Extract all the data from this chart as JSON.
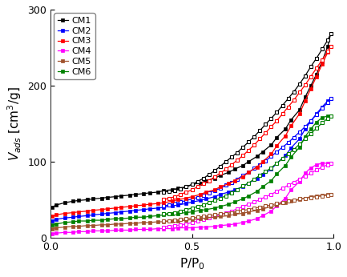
{
  "title": "",
  "xlabel": "P/P$_0$",
  "ylabel": "$V_{ads}$ [cm$^3$/g]",
  "xlim": [
    0.0,
    1.0
  ],
  "ylim": [
    0,
    300
  ],
  "yticks": [
    0,
    100,
    200,
    300
  ],
  "xticks": [
    0.0,
    0.5,
    1.0
  ],
  "series": [
    {
      "name": "CM1",
      "color": "#000000",
      "adsorption_x": [
        0.005,
        0.02,
        0.05,
        0.08,
        0.1,
        0.13,
        0.15,
        0.18,
        0.2,
        0.23,
        0.25,
        0.28,
        0.3,
        0.33,
        0.35,
        0.38,
        0.4,
        0.43,
        0.45,
        0.48,
        0.5,
        0.53,
        0.55,
        0.58,
        0.6,
        0.63,
        0.65,
        0.68,
        0.7,
        0.73,
        0.75,
        0.78,
        0.8,
        0.83,
        0.85,
        0.88,
        0.9,
        0.92,
        0.94,
        0.96,
        0.98,
        0.99
      ],
      "adsorption_y": [
        40,
        43,
        46,
        48,
        49,
        50,
        51,
        52,
        53,
        54,
        55,
        56,
        57,
        58,
        59,
        60,
        62,
        63,
        65,
        67,
        70,
        72,
        75,
        78,
        82,
        86,
        90,
        95,
        100,
        107,
        113,
        122,
        132,
        143,
        155,
        168,
        185,
        200,
        215,
        232,
        252,
        268
      ],
      "desorption_x": [
        0.99,
        0.98,
        0.96,
        0.94,
        0.92,
        0.9,
        0.88,
        0.86,
        0.84,
        0.82,
        0.8,
        0.78,
        0.76,
        0.74,
        0.72,
        0.7,
        0.68,
        0.66,
        0.64,
        0.62,
        0.6,
        0.58,
        0.56,
        0.54,
        0.52,
        0.5,
        0.48,
        0.46,
        0.44,
        0.42,
        0.4
      ],
      "desorption_y": [
        268,
        260,
        248,
        236,
        225,
        213,
        202,
        192,
        183,
        174,
        165,
        157,
        149,
        141,
        133,
        126,
        119,
        112,
        106,
        100,
        94,
        88,
        83,
        78,
        74,
        70,
        67,
        64,
        62,
        61,
        60
      ]
    },
    {
      "name": "CM2",
      "color": "#0000FF",
      "adsorption_x": [
        0.005,
        0.02,
        0.05,
        0.08,
        0.1,
        0.13,
        0.15,
        0.18,
        0.2,
        0.23,
        0.25,
        0.28,
        0.3,
        0.33,
        0.35,
        0.38,
        0.4,
        0.43,
        0.45,
        0.48,
        0.5,
        0.53,
        0.55,
        0.58,
        0.6,
        0.63,
        0.65,
        0.68,
        0.7,
        0.73,
        0.75,
        0.78,
        0.8,
        0.83,
        0.85,
        0.88,
        0.9,
        0.92,
        0.94,
        0.96,
        0.98,
        0.99
      ],
      "adsorption_y": [
        22,
        24,
        26,
        27,
        28,
        29,
        30,
        31,
        32,
        33,
        34,
        35,
        36,
        37,
        38,
        39,
        40,
        42,
        43,
        45,
        47,
        49,
        51,
        54,
        57,
        60,
        63,
        67,
        72,
        78,
        83,
        90,
        98,
        108,
        118,
        130,
        143,
        153,
        163,
        172,
        180,
        183
      ],
      "desorption_x": [
        0.99,
        0.98,
        0.96,
        0.94,
        0.92,
        0.9,
        0.88,
        0.86,
        0.84,
        0.82,
        0.8,
        0.78,
        0.76,
        0.74,
        0.72,
        0.7,
        0.68,
        0.66,
        0.64,
        0.62,
        0.6,
        0.58,
        0.56,
        0.54,
        0.52,
        0.5,
        0.48,
        0.46,
        0.44,
        0.42,
        0.4
      ],
      "desorption_y": [
        183,
        178,
        170,
        162,
        154,
        146,
        139,
        132,
        125,
        119,
        113,
        107,
        101,
        96,
        91,
        86,
        82,
        77,
        73,
        69,
        65,
        62,
        59,
        56,
        53,
        51,
        49,
        47,
        45,
        43,
        42
      ]
    },
    {
      "name": "CM3",
      "color": "#FF0000",
      "adsorption_x": [
        0.005,
        0.02,
        0.05,
        0.08,
        0.1,
        0.13,
        0.15,
        0.18,
        0.2,
        0.23,
        0.25,
        0.28,
        0.3,
        0.33,
        0.35,
        0.38,
        0.4,
        0.43,
        0.45,
        0.48,
        0.5,
        0.53,
        0.55,
        0.58,
        0.6,
        0.63,
        0.65,
        0.68,
        0.7,
        0.73,
        0.75,
        0.78,
        0.8,
        0.83,
        0.85,
        0.88,
        0.9,
        0.92,
        0.94,
        0.96,
        0.98,
        0.99
      ],
      "adsorption_y": [
        28,
        30,
        32,
        33,
        34,
        35,
        36,
        37,
        38,
        39,
        40,
        41,
        42,
        43,
        44,
        45,
        46,
        48,
        50,
        52,
        54,
        57,
        60,
        63,
        67,
        71,
        75,
        80,
        86,
        93,
        100,
        110,
        121,
        134,
        147,
        163,
        180,
        196,
        212,
        228,
        244,
        252
      ],
      "desorption_x": [
        0.99,
        0.98,
        0.96,
        0.94,
        0.92,
        0.9,
        0.88,
        0.86,
        0.84,
        0.82,
        0.8,
        0.78,
        0.76,
        0.74,
        0.72,
        0.7,
        0.68,
        0.66,
        0.64,
        0.62,
        0.6,
        0.58,
        0.56,
        0.54,
        0.52,
        0.5,
        0.48,
        0.46,
        0.44,
        0.42,
        0.4
      ],
      "desorption_y": [
        252,
        245,
        234,
        223,
        212,
        201,
        191,
        181,
        172,
        163,
        154,
        146,
        138,
        130,
        122,
        115,
        108,
        102,
        96,
        90,
        85,
        80,
        75,
        71,
        67,
        63,
        60,
        57,
        54,
        52,
        50
      ]
    },
    {
      "name": "CM4",
      "color": "#FF00FF",
      "adsorption_x": [
        0.005,
        0.02,
        0.05,
        0.08,
        0.1,
        0.13,
        0.15,
        0.18,
        0.2,
        0.23,
        0.25,
        0.28,
        0.3,
        0.33,
        0.35,
        0.38,
        0.4,
        0.43,
        0.45,
        0.48,
        0.5,
        0.53,
        0.55,
        0.58,
        0.6,
        0.63,
        0.65,
        0.68,
        0.7,
        0.73,
        0.75,
        0.78,
        0.8,
        0.83,
        0.85,
        0.88,
        0.9,
        0.92,
        0.94,
        0.96,
        0.98,
        0.99
      ],
      "adsorption_y": [
        5,
        6,
        7,
        7,
        8,
        8,
        9,
        9,
        9,
        10,
        10,
        10,
        11,
        11,
        11,
        12,
        12,
        12,
        13,
        13,
        13,
        14,
        14,
        15,
        16,
        17,
        18,
        20,
        22,
        25,
        29,
        35,
        42,
        52,
        63,
        74,
        85,
        92,
        96,
        98,
        98,
        98
      ],
      "desorption_x": [
        0.99,
        0.98,
        0.96,
        0.94,
        0.92,
        0.9,
        0.88,
        0.86,
        0.84,
        0.82,
        0.8,
        0.78,
        0.76,
        0.74,
        0.72,
        0.7,
        0.68,
        0.66,
        0.64,
        0.62,
        0.6,
        0.58,
        0.56,
        0.54,
        0.52,
        0.5,
        0.48,
        0.46,
        0.44,
        0.42,
        0.4
      ],
      "desorption_y": [
        98,
        96,
        93,
        89,
        85,
        81,
        77,
        73,
        69,
        65,
        61,
        57,
        54,
        50,
        47,
        44,
        41,
        38,
        35,
        33,
        30,
        28,
        26,
        24,
        22,
        20,
        18,
        17,
        16,
        15,
        14
      ]
    },
    {
      "name": "CM5",
      "color": "#A0522D",
      "adsorption_x": [
        0.005,
        0.02,
        0.05,
        0.08,
        0.1,
        0.13,
        0.15,
        0.18,
        0.2,
        0.23,
        0.25,
        0.28,
        0.3,
        0.33,
        0.35,
        0.38,
        0.4,
        0.43,
        0.45,
        0.48,
        0.5,
        0.53,
        0.55,
        0.58,
        0.6,
        0.63,
        0.65,
        0.68,
        0.7,
        0.73,
        0.75,
        0.78,
        0.8,
        0.83,
        0.85,
        0.88,
        0.9,
        0.92,
        0.94,
        0.96,
        0.98,
        0.99
      ],
      "adsorption_y": [
        12,
        13,
        14,
        15,
        15,
        16,
        16,
        17,
        17,
        18,
        18,
        19,
        19,
        20,
        20,
        21,
        21,
        22,
        22,
        23,
        24,
        25,
        26,
        27,
        28,
        29,
        31,
        32,
        34,
        36,
        38,
        41,
        43,
        46,
        48,
        50,
        52,
        54,
        55,
        56,
        57,
        57
      ],
      "desorption_x": [
        0.99,
        0.98,
        0.96,
        0.94,
        0.92,
        0.9,
        0.88,
        0.86,
        0.84,
        0.82,
        0.8,
        0.78,
        0.76,
        0.74,
        0.72,
        0.7,
        0.68,
        0.66,
        0.64,
        0.62,
        0.6,
        0.58,
        0.56,
        0.54,
        0.52,
        0.5,
        0.48,
        0.46,
        0.44,
        0.42,
        0.4
      ],
      "desorption_y": [
        57,
        56,
        55,
        54,
        53,
        52,
        51,
        49,
        48,
        46,
        45,
        43,
        42,
        40,
        39,
        37,
        36,
        35,
        33,
        32,
        31,
        30,
        29,
        28,
        27,
        26,
        25,
        24,
        23,
        22,
        22
      ]
    },
    {
      "name": "CM6",
      "color": "#008000",
      "adsorption_x": [
        0.005,
        0.02,
        0.05,
        0.08,
        0.1,
        0.13,
        0.15,
        0.18,
        0.2,
        0.23,
        0.25,
        0.28,
        0.3,
        0.33,
        0.35,
        0.38,
        0.4,
        0.43,
        0.45,
        0.48,
        0.5,
        0.53,
        0.55,
        0.58,
        0.6,
        0.63,
        0.65,
        0.68,
        0.7,
        0.73,
        0.75,
        0.78,
        0.8,
        0.83,
        0.85,
        0.88,
        0.9,
        0.92,
        0.94,
        0.96,
        0.98,
        0.99
      ],
      "adsorption_y": [
        17,
        18,
        20,
        21,
        22,
        22,
        23,
        23,
        24,
        25,
        25,
        26,
        27,
        27,
        28,
        29,
        30,
        31,
        32,
        33,
        34,
        36,
        37,
        39,
        41,
        44,
        47,
        51,
        55,
        61,
        67,
        75,
        84,
        95,
        106,
        119,
        133,
        143,
        152,
        158,
        160,
        160
      ],
      "desorption_x": [
        0.99,
        0.98,
        0.96,
        0.94,
        0.92,
        0.9,
        0.88,
        0.86,
        0.84,
        0.82,
        0.8,
        0.78,
        0.76,
        0.74,
        0.72,
        0.7,
        0.68,
        0.66,
        0.64,
        0.62,
        0.6,
        0.58,
        0.56,
        0.54,
        0.52,
        0.5,
        0.48,
        0.46,
        0.44,
        0.42,
        0.4
      ],
      "desorption_y": [
        160,
        157,
        151,
        144,
        137,
        130,
        123,
        116,
        110,
        104,
        98,
        92,
        87,
        82,
        77,
        72,
        68,
        63,
        59,
        55,
        52,
        49,
        46,
        43,
        41,
        39,
        37,
        35,
        33,
        32,
        31
      ]
    }
  ],
  "figsize": [
    4.33,
    3.46
  ],
  "dpi": 100,
  "background_color": "#ffffff",
  "legend_fontsize": 8,
  "axis_label_fontsize": 11,
  "tick_fontsize": 9,
  "marker_size": 3.5,
  "linewidth": 0.9
}
